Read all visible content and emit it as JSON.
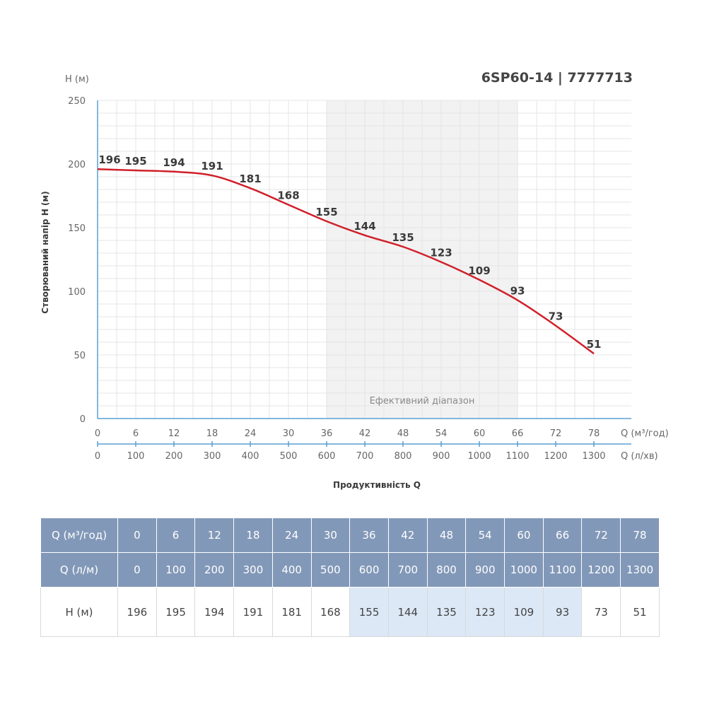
{
  "model_title": "6SP60-14 | 7777713",
  "chart_data": {
    "type": "line",
    "y_unit_label": "H (м)",
    "ylabel": "Створюваний напір H (м)",
    "xlabel": "Продуктивність Q",
    "x_unit_label": "Q (м³/год)",
    "x2_unit_label": "Q (л/хв)",
    "ylim": [
      0,
      250
    ],
    "yticks": [
      0,
      50,
      100,
      150,
      200,
      250
    ],
    "xlim": [
      0,
      78
    ],
    "x": [
      0,
      6,
      12,
      18,
      24,
      30,
      36,
      42,
      48,
      54,
      60,
      66,
      72,
      78
    ],
    "x2": [
      0,
      100,
      200,
      300,
      400,
      500,
      600,
      700,
      800,
      900,
      1000,
      1100,
      1200,
      1300
    ],
    "series": [
      {
        "values": [
          196,
          195,
          194,
          191,
          181,
          168,
          155,
          144,
          135,
          123,
          109,
          93,
          73,
          51
        ]
      }
    ],
    "efficient_range": {
      "label": "Ефективний діапазон",
      "from": 36,
      "to": 66
    },
    "line_color": "#d0202a",
    "grid": true
  },
  "table": {
    "row_labels": [
      "Q (м³/год)",
      "Q (л/м)",
      "H (м)"
    ],
    "rows": [
      [
        "0",
        "6",
        "12",
        "18",
        "24",
        "30",
        "36",
        "42",
        "48",
        "54",
        "60",
        "66",
        "72",
        "78"
      ],
      [
        "0",
        "100",
        "200",
        "300",
        "400",
        "500",
        "600",
        "700",
        "800",
        "900",
        "1000",
        "1100",
        "1200",
        "1300"
      ],
      [
        "196",
        "195",
        "194",
        "191",
        "181",
        "168",
        "155",
        "144",
        "135",
        "123",
        "109",
        "93",
        "73",
        "51"
      ]
    ],
    "header_color": "#8298b8",
    "highlight_color": "#dce8f6",
    "highlight_columns": [
      6,
      7,
      8,
      9,
      10,
      11
    ]
  }
}
